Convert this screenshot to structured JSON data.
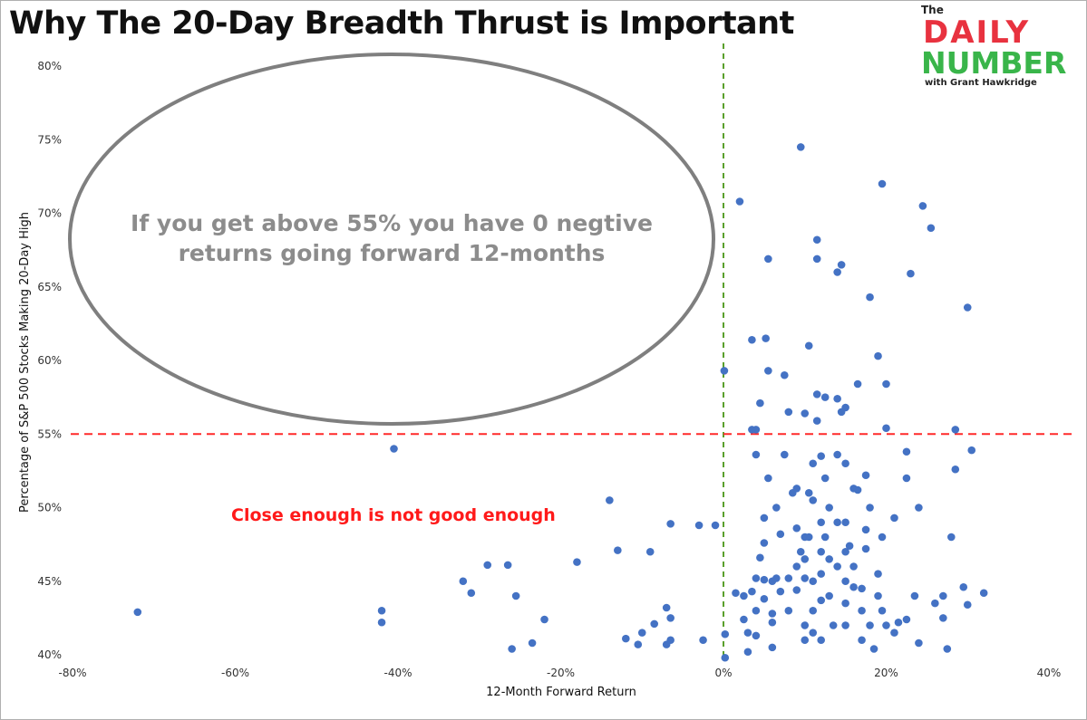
{
  "header": {
    "title": "Why The 20-Day Breadth Thrust is Important"
  },
  "logo": {
    "the": "The",
    "daily": "DAILY",
    "number": "NUMBER",
    "with": "with Grant Hawkridge"
  },
  "colors": {
    "points": "#4472c4",
    "threshold_line": "#ff2a2a",
    "zero_line": "#5aa02c",
    "ellipse": "#7f7f7f",
    "ellipse_text": "#8c8c8c",
    "red_annotation": "#ff1a1a"
  },
  "chart_data": {
    "type": "scatter",
    "title": "Why The 20-Day Breadth Thrust is Important",
    "xlabel": "12-Month Forward Return",
    "ylabel": "Percentage of S&P 500 Stocks Making 20-Day High",
    "xlim": [
      -0.8,
      0.4
    ],
    "ylim": [
      0.4,
      0.8
    ],
    "x_ticks": [
      "-80%",
      "-60%",
      "-40%",
      "-20%",
      "0%",
      "20%",
      "40%"
    ],
    "y_ticks": [
      "40%",
      "45%",
      "50%",
      "55%",
      "60%",
      "65%",
      "70%",
      "75%",
      "80%"
    ],
    "grid": false,
    "reference_lines": [
      {
        "orientation": "horizontal",
        "value": 0.55,
        "style": "dashed",
        "color": "red"
      },
      {
        "orientation": "vertical",
        "value": 0.0,
        "style": "dashed",
        "color": "green"
      }
    ],
    "annotations": [
      {
        "text": "If you get above 55% you have 0 negtive returns going forward 12-months",
        "shape": "ellipse",
        "lines": [
          "If you get above 55% you have 0 negtive",
          "returns going forward 12-months"
        ]
      },
      {
        "text": "Close enough is not good enough"
      }
    ],
    "points": [
      [
        -0.72,
        0.429
      ],
      [
        -0.42,
        0.43
      ],
      [
        -0.42,
        0.422
      ],
      [
        -0.405,
        0.54
      ],
      [
        -0.32,
        0.45
      ],
      [
        -0.31,
        0.442
      ],
      [
        -0.29,
        0.461
      ],
      [
        -0.265,
        0.461
      ],
      [
        -0.255,
        0.44
      ],
      [
        -0.26,
        0.404
      ],
      [
        -0.235,
        0.408
      ],
      [
        -0.22,
        0.424
      ],
      [
        -0.18,
        0.463
      ],
      [
        -0.14,
        0.505
      ],
      [
        -0.13,
        0.471
      ],
      [
        -0.12,
        0.411
      ],
      [
        -0.105,
        0.407
      ],
      [
        -0.1,
        0.415
      ],
      [
        -0.09,
        0.47
      ],
      [
        -0.085,
        0.421
      ],
      [
        -0.07,
        0.432
      ],
      [
        -0.065,
        0.425
      ],
      [
        -0.065,
        0.489
      ],
      [
        -0.07,
        0.407
      ],
      [
        -0.065,
        0.41
      ],
      [
        -0.03,
        0.488
      ],
      [
        -0.025,
        0.41
      ],
      [
        -0.01,
        0.488
      ],
      [
        0.001,
        0.593
      ],
      [
        0.002,
        0.414
      ],
      [
        0.002,
        0.398
      ],
      [
        0.015,
        0.442
      ],
      [
        0.02,
        0.708
      ],
      [
        0.025,
        0.44
      ],
      [
        0.03,
        0.402
      ],
      [
        0.025,
        0.424
      ],
      [
        0.03,
        0.415
      ],
      [
        0.035,
        0.614
      ],
      [
        0.035,
        0.553
      ],
      [
        0.04,
        0.553
      ],
      [
        0.04,
        0.536
      ],
      [
        0.04,
        0.452
      ],
      [
        0.035,
        0.443
      ],
      [
        0.04,
        0.43
      ],
      [
        0.04,
        0.413
      ],
      [
        0.045,
        0.571
      ],
      [
        0.045,
        0.466
      ],
      [
        0.05,
        0.493
      ],
      [
        0.05,
        0.476
      ],
      [
        0.05,
        0.451
      ],
      [
        0.05,
        0.438
      ],
      [
        0.052,
        0.615
      ],
      [
        0.055,
        0.669
      ],
      [
        0.055,
        0.593
      ],
      [
        0.055,
        0.52
      ],
      [
        0.06,
        0.45
      ],
      [
        0.06,
        0.428
      ],
      [
        0.06,
        0.422
      ],
      [
        0.06,
        0.405
      ],
      [
        0.065,
        0.5
      ],
      [
        0.065,
        0.452
      ],
      [
        0.07,
        0.482
      ],
      [
        0.07,
        0.443
      ],
      [
        0.075,
        0.59
      ],
      [
        0.075,
        0.536
      ],
      [
        0.08,
        0.565
      ],
      [
        0.08,
        0.452
      ],
      [
        0.08,
        0.43
      ],
      [
        0.085,
        0.51
      ],
      [
        0.09,
        0.513
      ],
      [
        0.09,
        0.486
      ],
      [
        0.09,
        0.46
      ],
      [
        0.09,
        0.444
      ],
      [
        0.095,
        0.745
      ],
      [
        0.095,
        0.47
      ],
      [
        0.1,
        0.564
      ],
      [
        0.1,
        0.48
      ],
      [
        0.1,
        0.465
      ],
      [
        0.1,
        0.452
      ],
      [
        0.1,
        0.42
      ],
      [
        0.1,
        0.41
      ],
      [
        0.105,
        0.61
      ],
      [
        0.105,
        0.51
      ],
      [
        0.105,
        0.48
      ],
      [
        0.11,
        0.53
      ],
      [
        0.11,
        0.505
      ],
      [
        0.11,
        0.45
      ],
      [
        0.11,
        0.43
      ],
      [
        0.11,
        0.415
      ],
      [
        0.115,
        0.682
      ],
      [
        0.115,
        0.669
      ],
      [
        0.115,
        0.577
      ],
      [
        0.115,
        0.559
      ],
      [
        0.12,
        0.535
      ],
      [
        0.12,
        0.49
      ],
      [
        0.12,
        0.47
      ],
      [
        0.12,
        0.455
      ],
      [
        0.12,
        0.437
      ],
      [
        0.12,
        0.41
      ],
      [
        0.125,
        0.575
      ],
      [
        0.125,
        0.52
      ],
      [
        0.125,
        0.48
      ],
      [
        0.13,
        0.5
      ],
      [
        0.13,
        0.465
      ],
      [
        0.13,
        0.44
      ],
      [
        0.135,
        0.42
      ],
      [
        0.14,
        0.66
      ],
      [
        0.14,
        0.574
      ],
      [
        0.14,
        0.536
      ],
      [
        0.14,
        0.49
      ],
      [
        0.14,
        0.46
      ],
      [
        0.145,
        0.665
      ],
      [
        0.145,
        0.565
      ],
      [
        0.15,
        0.568
      ],
      [
        0.15,
        0.53
      ],
      [
        0.15,
        0.49
      ],
      [
        0.15,
        0.47
      ],
      [
        0.15,
        0.45
      ],
      [
        0.15,
        0.435
      ],
      [
        0.15,
        0.42
      ],
      [
        0.155,
        0.474
      ],
      [
        0.16,
        0.513
      ],
      [
        0.16,
        0.46
      ],
      [
        0.16,
        0.446
      ],
      [
        0.165,
        0.584
      ],
      [
        0.165,
        0.512
      ],
      [
        0.17,
        0.445
      ],
      [
        0.17,
        0.43
      ],
      [
        0.17,
        0.41
      ],
      [
        0.175,
        0.522
      ],
      [
        0.175,
        0.485
      ],
      [
        0.175,
        0.472
      ],
      [
        0.18,
        0.643
      ],
      [
        0.18,
        0.5
      ],
      [
        0.18,
        0.42
      ],
      [
        0.185,
        0.404
      ],
      [
        0.19,
        0.603
      ],
      [
        0.19,
        0.455
      ],
      [
        0.19,
        0.44
      ],
      [
        0.195,
        0.72
      ],
      [
        0.195,
        0.48
      ],
      [
        0.195,
        0.43
      ],
      [
        0.2,
        0.584
      ],
      [
        0.2,
        0.554
      ],
      [
        0.2,
        0.42
      ],
      [
        0.21,
        0.493
      ],
      [
        0.21,
        0.415
      ],
      [
        0.215,
        0.422
      ],
      [
        0.225,
        0.424
      ],
      [
        0.225,
        0.538
      ],
      [
        0.225,
        0.52
      ],
      [
        0.23,
        0.659
      ],
      [
        0.235,
        0.44
      ],
      [
        0.24,
        0.5
      ],
      [
        0.24,
        0.408
      ],
      [
        0.245,
        0.705
      ],
      [
        0.255,
        0.69
      ],
      [
        0.26,
        0.435
      ],
      [
        0.27,
        0.44
      ],
      [
        0.27,
        0.425
      ],
      [
        0.275,
        0.404
      ],
      [
        0.28,
        0.48
      ],
      [
        0.285,
        0.553
      ],
      [
        0.285,
        0.526
      ],
      [
        0.295,
        0.446
      ],
      [
        0.3,
        0.636
      ],
      [
        0.3,
        0.434
      ],
      [
        0.305,
        0.539
      ],
      [
        0.32,
        0.442
      ]
    ]
  }
}
